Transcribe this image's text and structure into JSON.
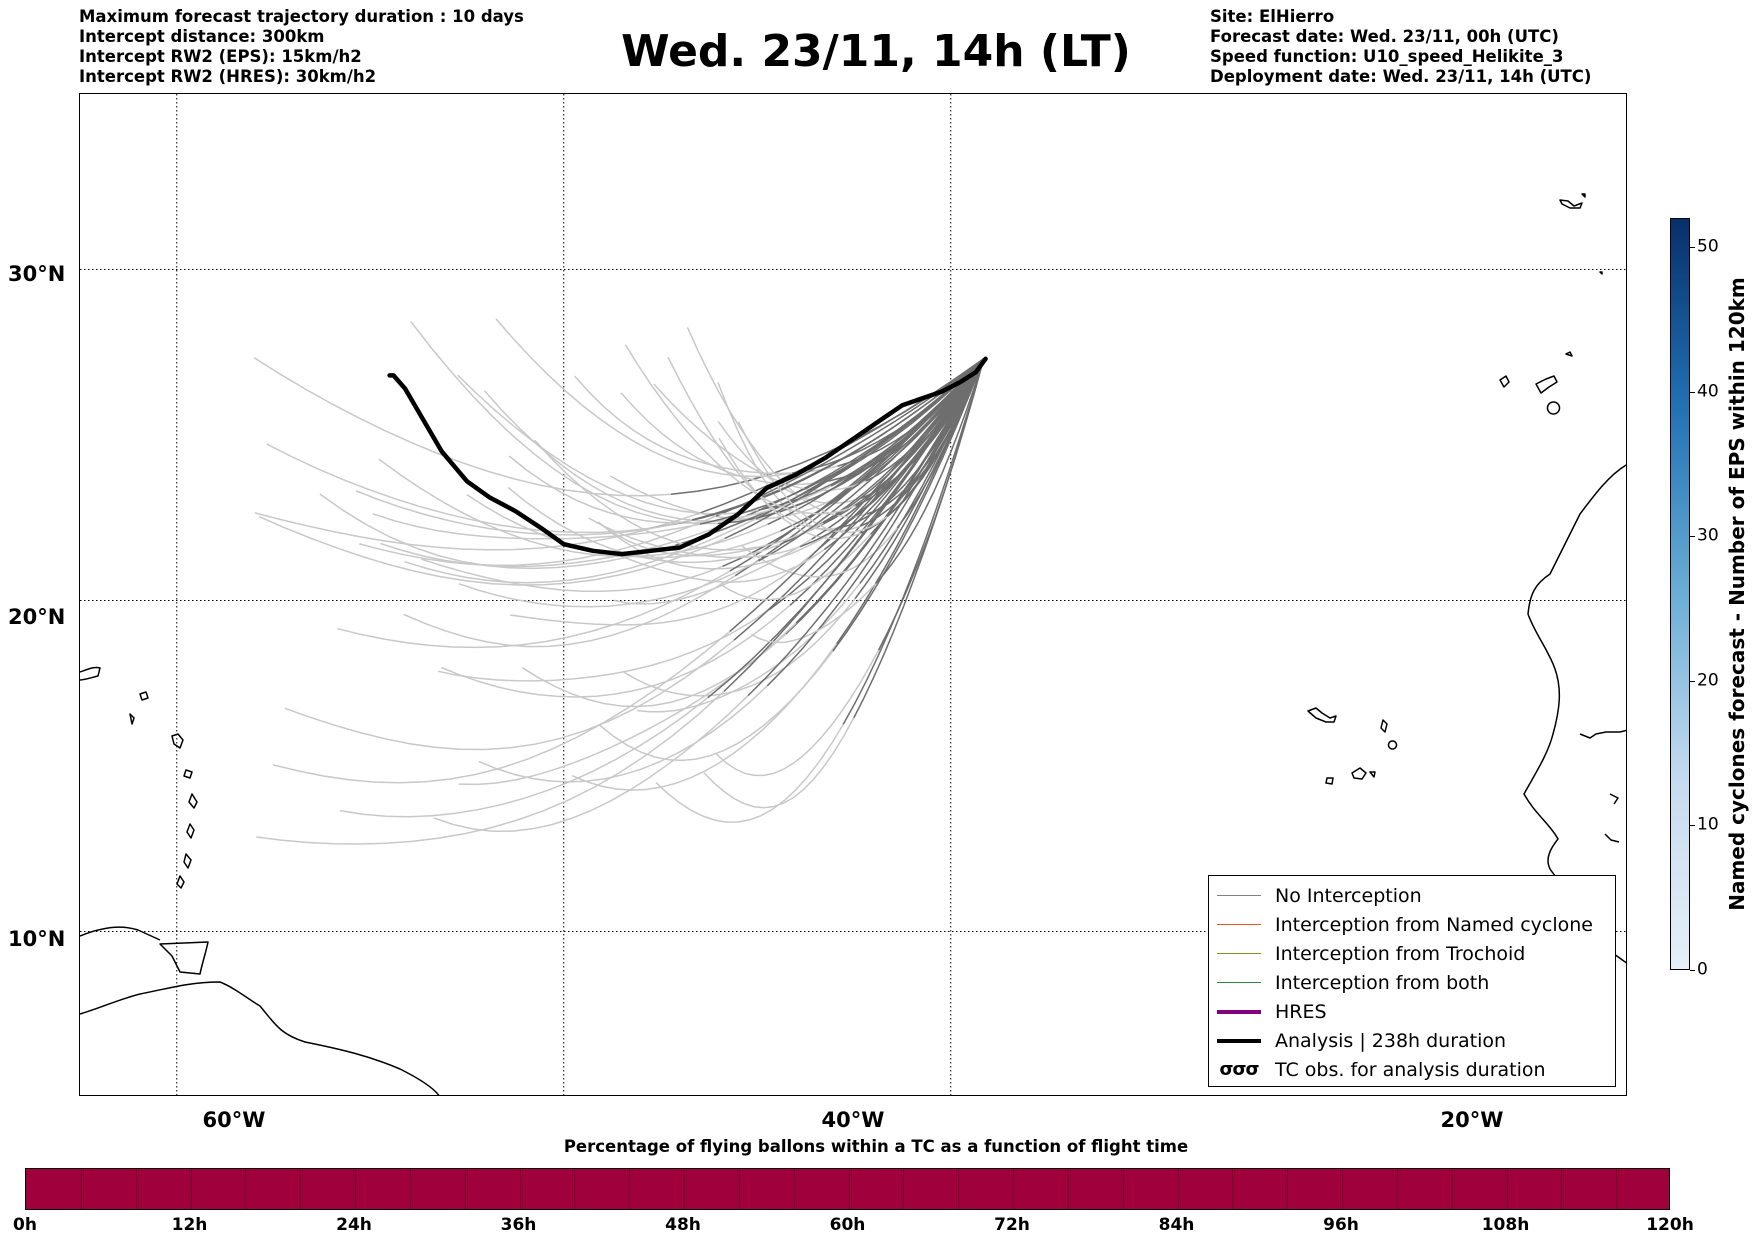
{
  "info_left": [
    "Maximum forecast trajectory duration : 10 days",
    "Intercept distance: 300km",
    "Intercept RW2 (EPS):  15km/h2",
    "Intercept RW2 (HRES): 30km/h2"
  ],
  "title": "Wed. 23/11, 14h (LT)",
  "info_right": [
    "Site: ElHierro",
    "Forecast date: Wed. 23/11, 00h (UTC)",
    "Speed function: U10_speed_Helikite_3",
    "Deployment date: Wed. 23/11, 14h (UTC)"
  ],
  "map": {
    "lon_range": [
      -65,
      15
    ],
    "lat_range": [
      5,
      35.3
    ],
    "lat_grid": [
      {
        "value": 30,
        "label": "30°N"
      },
      {
        "value": 20,
        "label": "20°N"
      },
      {
        "value": 10,
        "label": "10°N"
      }
    ],
    "lon_grid": [
      {
        "value": -60,
        "label": "60°W"
      },
      {
        "value": -40,
        "label": "40°W"
      },
      {
        "value": -20,
        "label": "20°W"
      }
    ],
    "analysis_track": [
      [
        -49.0,
        26.8
      ],
      [
        -48.8,
        26.8
      ],
      [
        -48.2,
        26.4
      ],
      [
        -47.2,
        25.4
      ],
      [
        -46.3,
        24.5
      ],
      [
        -45.0,
        23.6
      ],
      [
        -43.8,
        23.1
      ],
      [
        -42.5,
        22.7
      ],
      [
        -41.2,
        22.2
      ],
      [
        -40.0,
        21.7
      ],
      [
        -38.5,
        21.5
      ],
      [
        -37.0,
        21.4
      ],
      [
        -35.5,
        21.5
      ],
      [
        -34.0,
        21.6
      ],
      [
        -32.5,
        22.0
      ],
      [
        -31.0,
        22.6
      ],
      [
        -29.5,
        23.4
      ],
      [
        -28.0,
        23.8
      ],
      [
        -26.5,
        24.3
      ],
      [
        -25.0,
        24.9
      ],
      [
        -23.5,
        25.5
      ],
      [
        -22.5,
        25.9
      ],
      [
        -21.5,
        26.1
      ],
      [
        -20.5,
        26.3
      ],
      [
        -19.5,
        26.6
      ],
      [
        -18.7,
        26.9
      ],
      [
        -18.2,
        27.3
      ]
    ],
    "trajectory_count_inside": 60
  },
  "legend": [
    {
      "label": "No Interception",
      "color": "#808080",
      "width": 1.5,
      "kind": "line"
    },
    {
      "label": "Interception from Named cyclone",
      "color": "#e4572e",
      "width": 1.5,
      "kind": "line"
    },
    {
      "label": "Interception from Trochoid",
      "color": "#8c8c1e",
      "width": 1.5,
      "kind": "line"
    },
    {
      "label": "Interception from both",
      "color": "#2e8b3d",
      "width": 1.5,
      "kind": "line"
    },
    {
      "label": "HRES",
      "color": "#800080",
      "width": 4,
      "kind": "line"
    },
    {
      "label": "Analysis | 238h duration",
      "color": "#000000",
      "width": 4,
      "kind": "line"
    },
    {
      "label": "TC obs. for analysis duration",
      "color": "#000000",
      "kind": "glyph",
      "glyph": "σσσ"
    }
  ],
  "eps_colorbar": {
    "label": "Named cyclones forecast - Number of EPS within 120km",
    "ticks": [
      "0",
      "10",
      "20",
      "30",
      "40",
      "50"
    ],
    "min": 0,
    "max": 52,
    "colors": [
      "#e6eff9",
      "#08306b"
    ]
  },
  "pct_colorbar": {
    "title": "Percentage of flying ballons within a TC as a function of flight time",
    "ticks": [
      "0h",
      "12h",
      "24h",
      "36h",
      "48h",
      "60h",
      "72h",
      "84h",
      "96h",
      "108h",
      "120h"
    ],
    "color": "#a0003c"
  },
  "colors": {
    "analysis": "#000000",
    "no_interception": "#808080",
    "early_trajectory": "#c8c8c8",
    "late_trajectory": "#6e6e6e",
    "grid": "#000000",
    "coast": "#000000"
  }
}
